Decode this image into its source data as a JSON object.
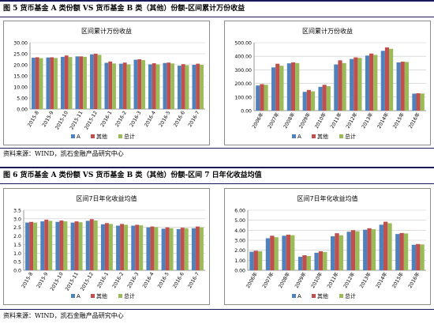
{
  "figures": [
    {
      "title": "图 5 货币基金 A 类份额 VS 货币基金 B 类（其他）份额-区间累计万份收益",
      "source": "资料来源：WIND，凯石金融产品研究中心"
    },
    {
      "title": "图 6 货币基金 A 类份额 VS 货币基金 B 类（其他）份额-区间 7 日年化收益均值",
      "source": "资料来源：WIND，凯石金融产品研究中心"
    }
  ],
  "colors": {
    "A": "#4f81bd",
    "其他": "#c0504d",
    "总计": "#9bbb59"
  },
  "chart_data": [
    {
      "type": "bar",
      "title": "区间累计万份收益",
      "categories": [
        "2015-8",
        "2015-9",
        "2015-10",
        "2015-11",
        "2015-12",
        "2016-1",
        "2016-2",
        "2016-3",
        "2016-4",
        "2016-5",
        "2016-6",
        "2016-7"
      ],
      "series": [
        {
          "name": "A",
          "values": [
            23.2,
            23.3,
            23.6,
            23.8,
            24.7,
            20.9,
            20.5,
            22.3,
            20.2,
            20.8,
            19.6,
            20.0
          ]
        },
        {
          "name": "其他",
          "values": [
            23.4,
            23.4,
            24.2,
            23.8,
            25.0,
            21.5,
            21.0,
            22.5,
            20.7,
            21.0,
            20.3,
            20.5
          ]
        },
        {
          "name": "总计",
          "values": [
            23.0,
            23.1,
            23.5,
            23.6,
            24.5,
            20.6,
            20.2,
            22.1,
            20.2,
            20.6,
            19.8,
            20.0
          ]
        }
      ],
      "yticks": [
        "0.00",
        "5.00",
        "10.00",
        "15.00",
        "20.00",
        "25.00",
        "30.00"
      ],
      "ylim": [
        0,
        30
      ],
      "legend": [
        "A",
        "其他",
        "总计"
      ],
      "legend_position": "bottom",
      "grid": true
    },
    {
      "type": "bar",
      "title": "区间累计万份收益",
      "categories": [
        "2006年",
        "2007年",
        "2008年",
        "2009年",
        "2010年",
        "2011年",
        "2012年",
        "2013年",
        "2014年",
        "2015年",
        "2016年"
      ],
      "series": [
        {
          "name": "A",
          "values": [
            185,
            318,
            348,
            138,
            175,
            340,
            380,
            405,
            440,
            355,
            125
          ]
        },
        {
          "name": "其他",
          "values": [
            195,
            345,
            355,
            152,
            190,
            370,
            392,
            420,
            465,
            360,
            128
          ]
        },
        {
          "name": "总计",
          "values": [
            190,
            330,
            350,
            142,
            180,
            350,
            388,
            410,
            455,
            358,
            126
          ]
        }
      ],
      "yticks": [
        "0.00",
        "100.00",
        "200.00",
        "300.00",
        "400.00",
        "500.00"
      ],
      "ylim": [
        0,
        500
      ],
      "legend": [
        "A",
        "其他",
        "总计"
      ],
      "legend_position": "bottom",
      "grid": true
    },
    {
      "type": "bar",
      "title": "区间7日年化收益均值",
      "categories": [
        "2015-8",
        "2015-9",
        "2015-10",
        "2015-11",
        "2015-12",
        "2016-1",
        "2016-2",
        "2016-3",
        "2016-4",
        "2016-5",
        "2016-6",
        "2016-7"
      ],
      "series": [
        {
          "name": "A",
          "values": [
            2.78,
            2.85,
            2.82,
            2.78,
            2.88,
            2.68,
            2.6,
            2.6,
            2.5,
            2.42,
            2.4,
            2.45
          ]
        },
        {
          "name": "其他",
          "values": [
            2.82,
            2.95,
            2.9,
            2.85,
            2.98,
            2.75,
            2.7,
            2.65,
            2.55,
            2.5,
            2.48,
            2.55
          ]
        },
        {
          "name": "总计",
          "values": [
            2.78,
            2.88,
            2.85,
            2.8,
            2.9,
            2.7,
            2.65,
            2.62,
            2.52,
            2.45,
            2.45,
            2.5
          ]
        }
      ],
      "yticks": [
        "0.0",
        "0.5",
        "1.0",
        "1.5",
        "2.0",
        "2.5",
        "3.0",
        "3.5"
      ],
      "ylim": [
        0,
        3.5
      ],
      "legend": [
        "A",
        "其他",
        "总计"
      ],
      "legend_position": "bottom",
      "grid": true
    },
    {
      "type": "bar",
      "title": "区间7日年化收益均值",
      "categories": [
        "2006年",
        "2007年",
        "2008年",
        "2009年",
        "2010年",
        "2011年",
        "2012年",
        "2013年",
        "2014年",
        "2015年",
        "2016年"
      ],
      "series": [
        {
          "name": "A",
          "values": [
            1.85,
            3.2,
            3.45,
            1.35,
            1.75,
            3.4,
            3.85,
            4.05,
            4.55,
            3.62,
            2.55
          ]
        },
        {
          "name": "其他",
          "values": [
            1.95,
            3.45,
            3.55,
            1.5,
            1.9,
            3.7,
            4.0,
            4.2,
            4.85,
            3.72,
            2.62
          ]
        },
        {
          "name": "总计",
          "values": [
            1.9,
            3.3,
            3.5,
            1.42,
            1.82,
            3.5,
            3.9,
            4.1,
            4.7,
            3.68,
            2.58
          ]
        }
      ],
      "yticks": [
        "0.00",
        "1.00",
        "2.00",
        "3.00",
        "4.00",
        "5.00",
        "6.00"
      ],
      "ylim": [
        0,
        6
      ],
      "legend": [
        "A",
        "其他",
        "总计"
      ],
      "legend_position": "bottom",
      "grid": true
    }
  ]
}
